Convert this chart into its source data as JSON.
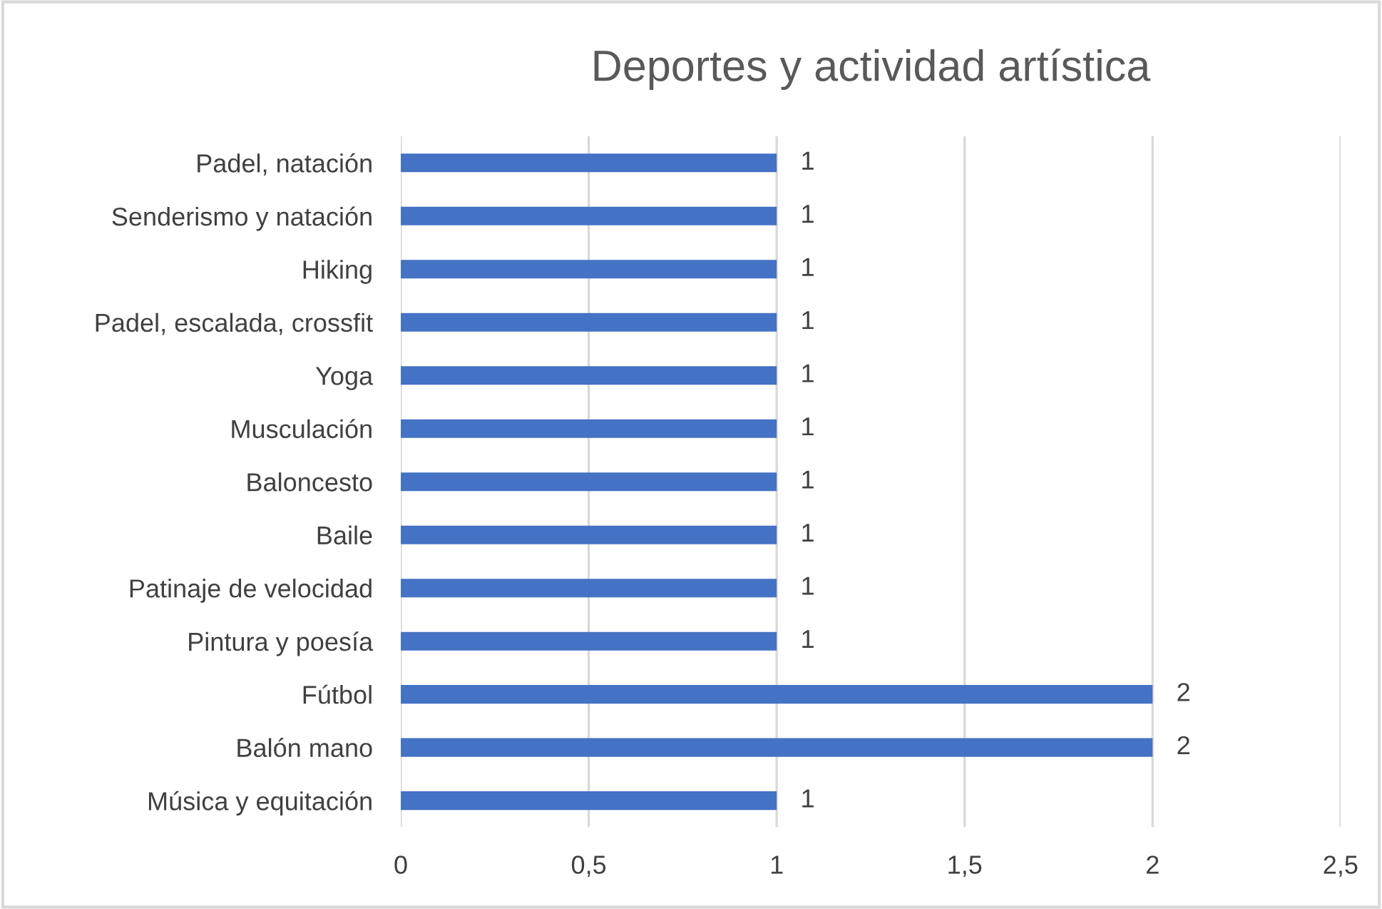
{
  "chart_data": {
    "type": "bar",
    "orientation": "horizontal",
    "title": "Deportes y actividad artística",
    "categories": [
      "Padel, natación",
      "Senderismo y natación",
      "Hiking",
      "Padel, escalada, crossfit",
      "Yoga",
      "Musculación",
      "Baloncesto",
      "Baile",
      "Patinaje de velocidad",
      "Pintura y poesía",
      "Fútbol",
      "Balón mano",
      "Música y equitación"
    ],
    "values": [
      1,
      1,
      1,
      1,
      1,
      1,
      1,
      1,
      1,
      1,
      2,
      2,
      1
    ],
    "color": "#4472c4",
    "xlim": [
      0,
      2.5
    ],
    "xticks": [
      0,
      {
        "value": 0.5,
        "label": "0,5"
      },
      1,
      {
        "value": 1.5,
        "label": "1,5"
      },
      2,
      {
        "value": 2.5,
        "label": "2,5"
      }
    ],
    "grid": "x",
    "data_labels": true,
    "legend": false
  }
}
